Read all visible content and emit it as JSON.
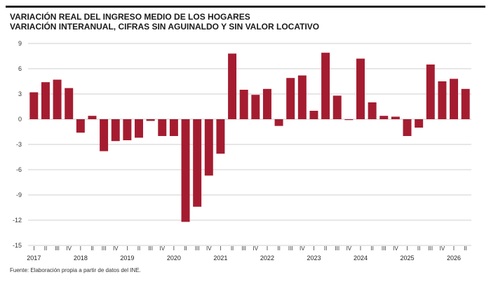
{
  "header": {
    "title": "VARIACIÓN REAL DEL INGRESO MEDIO DE LOS HOGARES",
    "subtitle": "VARIACIÓN INTERANUAL, CIFRAS SIN AGUINALDO Y SIN VALOR LOCATIVO"
  },
  "footer": {
    "source": "Fuente: Elaboración propia a partir de datos del INE."
  },
  "colors": {
    "bar": "#a51c30",
    "grid": "#cfcfcf",
    "axis_text": "#333333"
  },
  "chart_data": {
    "type": "bar",
    "title": "VARIACIÓN REAL DEL INGRESO MEDIO DE LOS HOGARES",
    "subtitle": "VARIACIÓN INTERANUAL, CIFRAS SIN AGUINALDO Y SIN VALOR LOCATIVO",
    "xlabel": "",
    "ylabel": "",
    "ylim": [
      -15,
      9
    ],
    "yticks": [
      9,
      6,
      3,
      0,
      -3,
      -6,
      -9,
      -12,
      -15
    ],
    "grid": true,
    "legend": "none",
    "quarter_labels": [
      "I",
      "II",
      "III",
      "IV",
      "I",
      "II",
      "III",
      "IV",
      "I",
      "II",
      "III",
      "IV",
      "I",
      "II",
      "III",
      "IV",
      "I",
      "II",
      "III",
      "IV",
      "I",
      "II",
      "III",
      "IV",
      "I",
      "II",
      "III",
      "IV",
      "I",
      "II",
      "III",
      "IV",
      "I",
      "II",
      "III",
      "IV",
      "I",
      "II"
    ],
    "years": [
      {
        "label": "2017",
        "first_quarter": 0
      },
      {
        "label": "2018",
        "first_quarter": 4
      },
      {
        "label": "2019",
        "first_quarter": 8
      },
      {
        "label": "2020",
        "first_quarter": 12
      },
      {
        "label": "2021",
        "first_quarter": 16
      },
      {
        "label": "2022",
        "first_quarter": 20
      },
      {
        "label": "2023",
        "first_quarter": 24
      },
      {
        "label": "2024",
        "first_quarter": 28
      },
      {
        "label": "2025",
        "first_quarter": 32
      },
      {
        "label": "2026",
        "first_quarter": 36
      }
    ],
    "values": [
      3.2,
      4.4,
      4.7,
      3.7,
      -1.6,
      0.4,
      -3.8,
      -2.6,
      -2.5,
      -2.2,
      -0.2,
      -2.0,
      -2.0,
      -12.2,
      -10.4,
      -6.7,
      -4.1,
      7.8,
      3.5,
      2.9,
      3.6,
      -0.8,
      4.9,
      5.2,
      1.0,
      7.9,
      2.8,
      -0.1,
      7.2,
      2.0,
      0.4,
      0.3,
      -2.0,
      -1.0,
      6.5,
      4.5,
      4.8,
      3.6
    ]
  }
}
